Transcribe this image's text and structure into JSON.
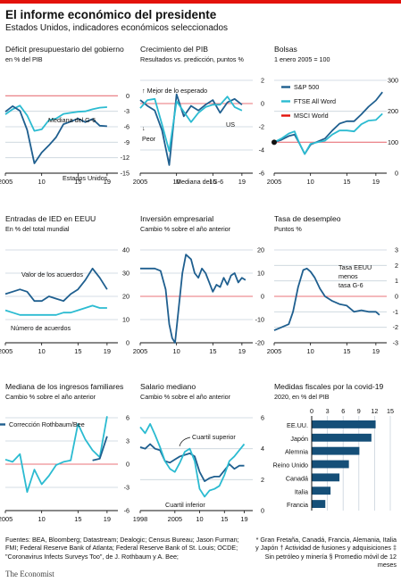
{
  "title": "El informe económico del presidente",
  "subtitle": "Estados Unidos, indicadores económicos seleccionados",
  "colors": {
    "red": "#e3120b",
    "darkblue": "#1f5f8f",
    "lightblue": "#2bbbd1",
    "navy": "#154f78",
    "grid": "#c9d3dc",
    "zero": "#e8737a"
  },
  "chart_data": [
    {
      "type": "line",
      "title": "Déficit presupuestario del gobierno",
      "subtitle": "en % del PIB",
      "x_ticks": [
        "2005",
        "10",
        "15",
        "19"
      ],
      "y_ticks": [
        "0",
        "-3",
        "-6",
        "-9",
        "-12",
        "-15"
      ],
      "ylim": [
        -15,
        3
      ],
      "xlim": [
        2005,
        2020
      ],
      "annotations": [
        "Mediana del G-6",
        "Estados Unidos"
      ],
      "series": [
        {
          "name": "Mediana del G-6",
          "color": "lightblue",
          "x": [
            2005,
            2006,
            2007,
            2008,
            2009,
            2010,
            2011,
            2012,
            2013,
            2014,
            2015,
            2016,
            2017,
            2018,
            2019
          ],
          "y": [
            -3.6,
            -2.6,
            -1.9,
            -3.8,
            -6.8,
            -6.5,
            -4.7,
            -4.4,
            -3.5,
            -3.3,
            -3.1,
            -3.0,
            -2.6,
            -2.3,
            -2.2
          ]
        },
        {
          "name": "Estados Unidos",
          "color": "darkblue",
          "x": [
            2005,
            2006,
            2007,
            2008,
            2009,
            2010,
            2011,
            2012,
            2013,
            2014,
            2015,
            2016,
            2017,
            2018,
            2019
          ],
          "y": [
            -3.1,
            -2.0,
            -2.9,
            -6.6,
            -13.1,
            -11.0,
            -9.6,
            -8.0,
            -5.5,
            -5.0,
            -4.4,
            -5.1,
            -4.5,
            -5.8,
            -5.9
          ]
        }
      ]
    },
    {
      "type": "line",
      "title": "Crecimiento del PIB",
      "subtitle": "Resultados vs. predicción, puntos %",
      "x_ticks": [
        "2005",
        "10",
        "15",
        "19"
      ],
      "y_ticks": [
        "2",
        "0",
        "-2",
        "-4",
        "-6"
      ],
      "ylim": [
        -6,
        2
      ],
      "xlim": [
        2005,
        2020
      ],
      "annotations": [
        "↑ Mejor de lo esperado",
        "↓",
        "Peor",
        "US",
        "Mediana del G-6"
      ],
      "series": [
        {
          "name": "US",
          "color": "darkblue",
          "x": [
            2005,
            2006,
            2007,
            2008,
            2009,
            2010,
            2011,
            2012,
            2013,
            2014,
            2015,
            2016,
            2017,
            2018,
            2019
          ],
          "y": [
            0.3,
            -0.2,
            -0.6,
            -2.3,
            -5.3,
            0.8,
            -1.1,
            -0.2,
            -0.6,
            -0.1,
            0.3,
            -0.8,
            0.1,
            0.4,
            -0.1
          ]
        },
        {
          "name": "Mediana del G-6",
          "color": "lightblue",
          "x": [
            2005,
            2006,
            2007,
            2008,
            2009,
            2010,
            2011,
            2012,
            2013,
            2014,
            2015,
            2016,
            2017,
            2018,
            2019
          ],
          "y": [
            -0.4,
            0.3,
            0.4,
            -1.8,
            -4.1,
            0.2,
            -0.7,
            -1.6,
            -0.8,
            -0.3,
            -0.1,
            -0.1,
            0.6,
            -0.3,
            -0.6
          ]
        }
      ]
    },
    {
      "type": "line",
      "title": "Bolsas",
      "subtitle": "1 enero 2005 = 100",
      "x_ticks": [
        "2005",
        "10",
        "15",
        "19"
      ],
      "y_ticks": [
        "300",
        "200",
        "100",
        "0"
      ],
      "ylim": [
        0,
        300
      ],
      "xlim": [
        2005,
        2020
      ],
      "legend": [
        "S&P 500",
        "FTSE All Word",
        "MSCI World"
      ],
      "series": [
        {
          "name": "S&P 500",
          "color": "darkblue",
          "x": [
            2005,
            2006,
            2007,
            2007.8,
            2008.5,
            2009.2,
            2010,
            2011,
            2012,
            2013,
            2014,
            2015,
            2016,
            2017,
            2018,
            2019,
            2019.9
          ],
          "y": [
            100,
            108,
            120,
            125,
            95,
            62,
            92,
            102,
            112,
            138,
            160,
            168,
            168,
            190,
            215,
            235,
            262
          ]
        },
        {
          "name": "FTSE All Word",
          "color": "lightblue",
          "x": [
            2005,
            2006,
            2007,
            2007.8,
            2008.5,
            2009.2,
            2010,
            2011,
            2012,
            2013,
            2014,
            2015,
            2016,
            2017,
            2018,
            2019,
            2019.9
          ],
          "y": [
            100,
            112,
            128,
            135,
            95,
            62,
            95,
            100,
            105,
            125,
            138,
            138,
            135,
            158,
            170,
            172,
            192
          ]
        },
        {
          "name": "MSCI World",
          "color": "red",
          "x": [
            2005,
            2019.9
          ],
          "y": [
            100,
            100
          ]
        }
      ]
    },
    {
      "type": "line",
      "title": "Entradas de IED en EEUU",
      "subtitle": "En % del total mundial",
      "x_ticks": [
        "2005",
        "10",
        "15",
        "19"
      ],
      "y_ticks": [
        "40",
        "30",
        "20",
        "10",
        "0"
      ],
      "ylim": [
        0,
        40
      ],
      "xlim": [
        2005,
        2020
      ],
      "annotations": [
        "Valor de los acuerdos",
        "Número de acuerdos"
      ],
      "series": [
        {
          "name": "Valor de los acuerdos",
          "color": "darkblue",
          "x": [
            2005,
            2006,
            2007,
            2008,
            2009,
            2010,
            2011,
            2012,
            2013,
            2014,
            2015,
            2016,
            2017,
            2018,
            2019
          ],
          "y": [
            21,
            22,
            23,
            22,
            18,
            18,
            20,
            19,
            18,
            21,
            23,
            27,
            32,
            28,
            23
          ]
        },
        {
          "name": "Número de acuerdos",
          "color": "lightblue",
          "x": [
            2005,
            2006,
            2007,
            2008,
            2009,
            2010,
            2011,
            2012,
            2013,
            2014,
            2015,
            2016,
            2017,
            2018,
            2019
          ],
          "y": [
            14,
            13,
            12,
            12,
            12,
            12,
            12,
            12,
            13,
            13,
            14,
            15,
            16,
            15,
            15
          ]
        }
      ]
    },
    {
      "type": "line",
      "title": "Inversión empresarial",
      "subtitle": "Cambio % sobre el año anterior",
      "x_ticks": [
        "2005",
        "10",
        "15",
        "19"
      ],
      "y_ticks": [
        "20",
        "10",
        "0",
        "-10",
        "-20"
      ],
      "ylim": [
        -20,
        20
      ],
      "xlim": [
        2005,
        2020
      ],
      "series": [
        {
          "name": "",
          "color": "darkblue",
          "x": [
            2005,
            2006,
            2007,
            2007.8,
            2008.5,
            2009,
            2009.4,
            2009.8,
            2010.3,
            2010.8,
            2011.3,
            2012,
            2012.5,
            2013,
            2013.5,
            2014,
            2014.5,
            2015,
            2015.5,
            2016,
            2016.5,
            2017,
            2017.5,
            2018,
            2018.5,
            2019,
            2019.5
          ],
          "y": [
            12,
            12,
            12,
            11,
            3,
            -12,
            -18,
            -20,
            -5,
            10,
            18,
            16,
            10,
            8,
            12,
            10,
            6,
            2,
            5,
            4,
            8,
            5,
            9,
            10,
            6,
            8,
            7
          ]
        }
      ]
    },
    {
      "type": "line",
      "title": "Tasa de desempleo",
      "subtitle": "Puntos %",
      "x_ticks": [
        "2005",
        "10",
        "15",
        "19"
      ],
      "y_ticks": [
        "3",
        "2",
        "1",
        "0",
        "-1",
        "-2",
        "-3"
      ],
      "ylim": [
        -3,
        3
      ],
      "xlim": [
        2005,
        2020
      ],
      "annotations": [
        "Tasa EEUU",
        "menos",
        "tasa G-6"
      ],
      "series": [
        {
          "name": "Tasa EEUU menos tasa G-6",
          "color": "darkblue",
          "x": [
            2005,
            2006,
            2007,
            2007.6,
            2008.3,
            2009,
            2009.5,
            2010,
            2010.6,
            2011.3,
            2012,
            2013,
            2014,
            2015,
            2016,
            2017,
            2018,
            2019,
            2019.5
          ],
          "y": [
            -2.2,
            -2.0,
            -1.8,
            -1.0,
            0.6,
            1.7,
            1.8,
            1.6,
            1.2,
            0.5,
            0.0,
            -0.3,
            -0.5,
            -0.6,
            -1.0,
            -0.9,
            -1.0,
            -1.0,
            -1.2
          ]
        }
      ]
    },
    {
      "type": "line",
      "title": "Mediana de los ingresos familiares",
      "subtitle": "Cambio % sobre el año anterior",
      "x_ticks": [
        "2005",
        "10",
        "15",
        "19"
      ],
      "y_ticks": [
        "6",
        "3",
        "0",
        "-3",
        "-6"
      ],
      "ylim": [
        -6,
        6
      ],
      "xlim": [
        2005,
        2020
      ],
      "legend": [
        "Corrección Rothbaum/Bee"
      ],
      "series": [
        {
          "name": "",
          "color": "lightblue",
          "x": [
            2005,
            2006,
            2007,
            2008,
            2009,
            2010,
            2011,
            2012,
            2013,
            2014,
            2015,
            2016,
            2017,
            2018,
            2019
          ],
          "y": [
            0.6,
            0.3,
            1.3,
            -3.6,
            -0.7,
            -2.6,
            -1.5,
            -0.1,
            0.3,
            0.5,
            5.2,
            3.2,
            1.8,
            0.9,
            6.2
          ]
        },
        {
          "name": "Corrección Rothbaum/Bee",
          "color": "darkblue",
          "x": [
            2017,
            2018,
            2019
          ],
          "y": [
            0.5,
            0.7,
            3.6
          ]
        }
      ]
    },
    {
      "type": "line",
      "title": "Salario mediano",
      "subtitle": "Cambio % sobre el año anterior",
      "x_ticks": [
        "1998",
        "2005",
        "10",
        "15",
        "19"
      ],
      "y_ticks": [
        "6",
        "4",
        "2",
        "0"
      ],
      "ylim": [
        0,
        6
      ],
      "xlim": [
        1998,
        2020
      ],
      "annotations": [
        "Cuartil superior",
        "Cuartil  inferior"
      ],
      "series": [
        {
          "name": "Cuartil superior",
          "color": "darkblue",
          "x": [
            1998,
            1999,
            2000,
            2001,
            2002,
            2003,
            2004,
            2005,
            2006,
            2007,
            2008,
            2009,
            2010,
            2011,
            2012,
            2013,
            2014,
            2015,
            2016,
            2017,
            2018,
            2019
          ],
          "y": [
            4.1,
            4.0,
            4.3,
            4.0,
            3.9,
            3.2,
            3.1,
            3.3,
            3.5,
            3.6,
            3.7,
            3.5,
            2.5,
            1.9,
            2.1,
            2.2,
            2.2,
            2.6,
            3.0,
            2.7,
            2.9,
            2.9
          ]
        },
        {
          "name": "Cuartil  inferior",
          "color": "lightblue",
          "x": [
            1998,
            1999,
            2000,
            2001,
            2002,
            2003,
            2004,
            2005,
            2006,
            2007,
            2008,
            2009,
            2010,
            2011,
            2012,
            2013,
            2014,
            2015,
            2016,
            2017,
            2018,
            2019
          ],
          "y": [
            5.4,
            5.0,
            5.6,
            4.9,
            4.1,
            3.2,
            2.7,
            2.5,
            3.1,
            3.8,
            4.0,
            3.2,
            1.4,
            0.9,
            1.3,
            1.4,
            1.6,
            2.3,
            3.2,
            3.5,
            3.9,
            4.3
          ]
        }
      ]
    },
    {
      "type": "bar",
      "orientation": "horizontal",
      "title": "Medidas fiscales por la covid-19",
      "subtitle": "2020, en % del PIB",
      "x_ticks": [
        "0",
        "3",
        "6",
        "9",
        "12",
        "15"
      ],
      "xlim": [
        0,
        15
      ],
      "categories": [
        "EE.UU.",
        "Japón",
        "Alemnia",
        "Reino Unido",
        "Canadá",
        "Italia",
        "Francia"
      ],
      "values": [
        12.2,
        11.4,
        9.1,
        7.1,
        5.3,
        3.6,
        2.6
      ],
      "color": "navy"
    }
  ],
  "footer": {
    "sources": "Fuentes: BEA, Bloomberg; Datastream; Dealogic; Census Bureau; Jason Furman; FMI; Federal Reserve Bank of Atlanta; Federal Reserve Bank of St. Louis; OCDE; \"Coronavirus Infects Surveys Too\", de J. Rothbaum y A. Bee;",
    "notes": "* Gran Fretaña, Canadá, Francia, Alemania, Italia y Japón † Actividad de fusiones y adquisiciones ‡ Sin petróleo y minería § Promedio móvil de 12 meses",
    "brand": "The Economist"
  }
}
